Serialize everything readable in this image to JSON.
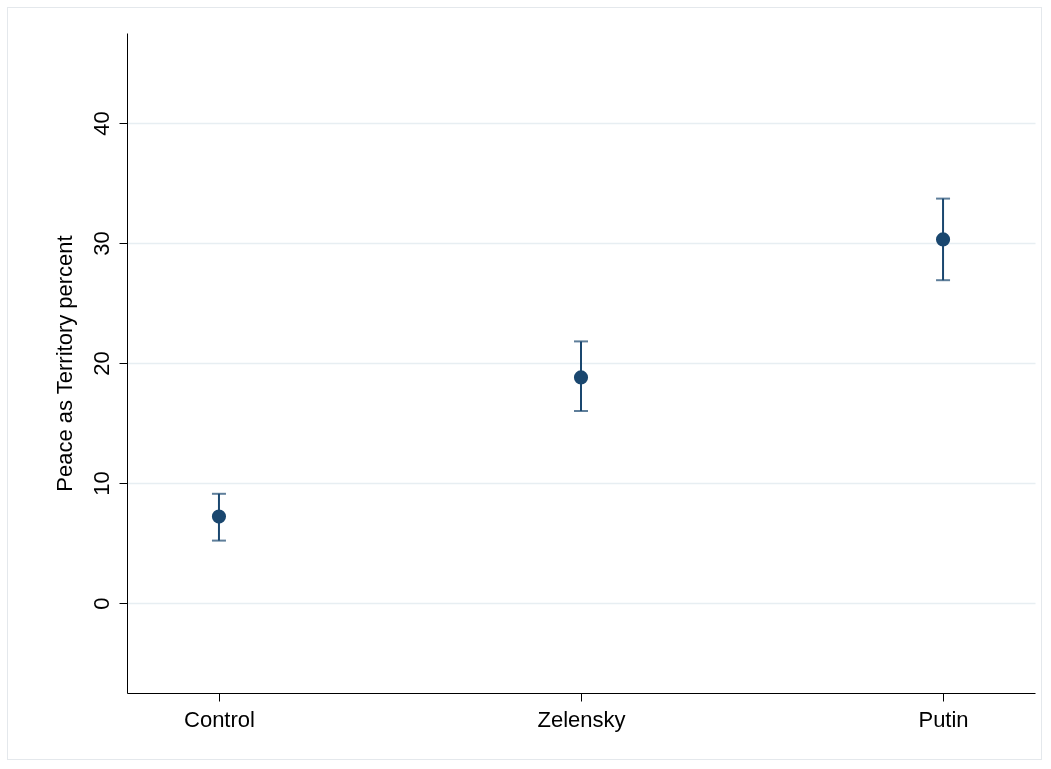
{
  "chart_data": {
    "type": "scatter",
    "ylabel": "Peace as Territory percent",
    "categories": [
      "Control",
      "Zelensky",
      "Putin"
    ],
    "series": [
      {
        "color": "#1a476f",
        "values": [
          7.2,
          18.8,
          30.3
        ],
        "errors": [
          [
            5.2,
            9.1
          ],
          [
            16.0,
            21.8
          ],
          [
            26.9,
            33.7
          ]
        ]
      }
    ],
    "ylim": [
      -7.5,
      47.5
    ],
    "yticks": [
      0,
      10,
      20,
      30,
      40
    ],
    "grid": "y",
    "marker": "circle"
  }
}
